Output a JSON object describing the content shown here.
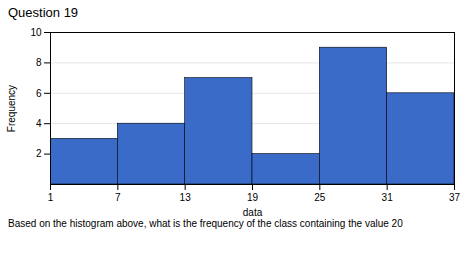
{
  "chart_data": {
    "type": "histogram",
    "title": "Question 19",
    "bins": [
      1,
      7,
      13,
      19,
      25,
      31,
      37
    ],
    "values": [
      3,
      4,
      7,
      2,
      9,
      6
    ],
    "color": "#3a6bc9",
    "xlabel": "data",
    "ylabel": "Frequency",
    "xlim": [
      1,
      37
    ],
    "xticks": [
      1,
      7,
      13,
      19,
      25,
      31,
      37
    ],
    "ylim": [
      0,
      10
    ],
    "yticks": [
      2,
      4,
      6,
      8,
      10
    ],
    "grid": true,
    "annotations": [
      "Based on the histogram above, what is the frequency of the class containing the value 20"
    ]
  }
}
